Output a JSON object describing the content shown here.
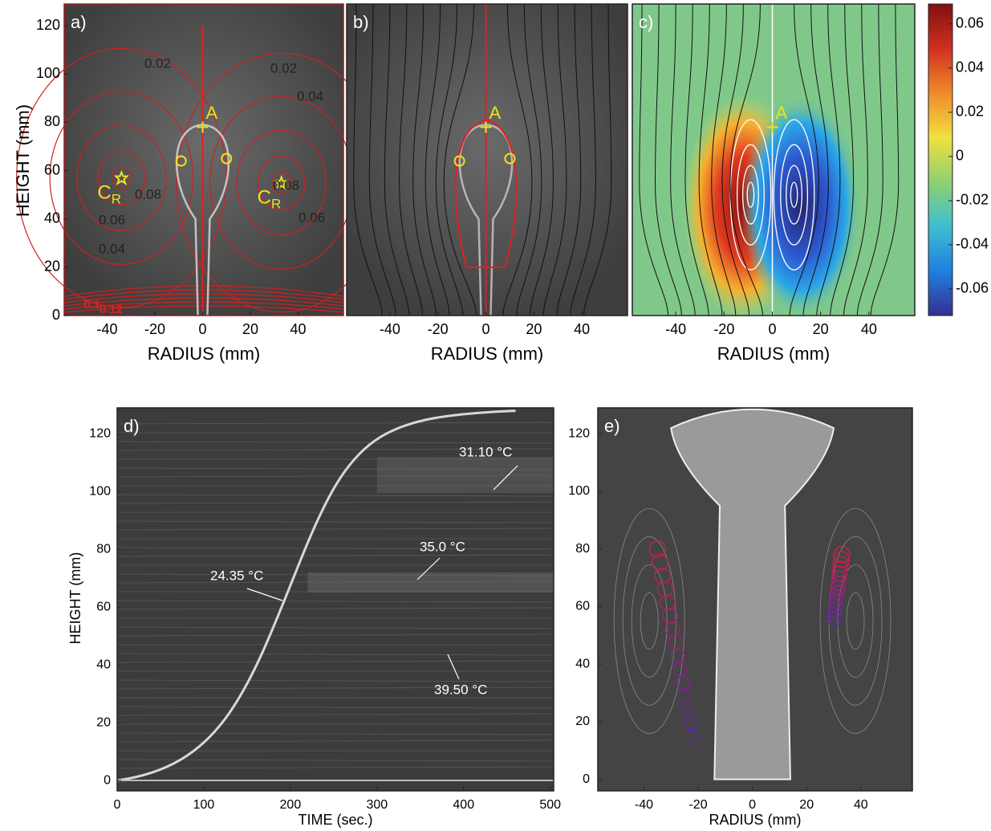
{
  "chart_data": [
    {
      "type": "image",
      "panel_label": "a)",
      "xlabel": "RADIUS (mm)",
      "ylabel": "HEIGHT (mm)",
      "xlim": [
        -58,
        59
      ],
      "ylim": [
        0,
        129
      ],
      "xticks": [
        -40,
        -20,
        0,
        20,
        40
      ],
      "yticks": [
        0,
        20,
        40,
        60,
        80,
        100,
        120
      ],
      "points": [
        {
          "name": "A",
          "x": 0,
          "y": 78
        },
        {
          "name": "C",
          "sub": "R",
          "x": -34,
          "y": 57
        },
        {
          "name": "C",
          "sub": "R",
          "x": 33,
          "y": 55
        }
      ],
      "annotations": [
        "0.02",
        "0.02",
        "0.04",
        "0.08",
        "0.06",
        "0.04",
        "0.08",
        "0.06",
        "0.1",
        "0.12"
      ]
    },
    {
      "type": "image",
      "panel_label": "b)",
      "xlabel": "RADIUS (mm)",
      "xlim": [
        -58,
        59
      ],
      "ylim": [
        0,
        129
      ],
      "xticks": [
        -40,
        -20,
        0,
        20,
        40
      ],
      "points": [
        {
          "name": "A",
          "x": 0,
          "y": 78
        }
      ]
    },
    {
      "type": "image",
      "panel_label": "c)",
      "xlabel": "RADIUS (mm)",
      "xlim": [
        -58,
        59
      ],
      "ylim": [
        0,
        129
      ],
      "xticks": [
        -40,
        -20,
        0,
        20,
        40
      ],
      "points": [
        {
          "name": "A",
          "x": 0,
          "y": 78
        }
      ],
      "colorbar": {
        "clim": [
          -0.072,
          0.069
        ],
        "ticks": [
          0.06,
          0.04,
          0.02,
          0,
          -0.02,
          -0.04,
          -0.06
        ],
        "colormap": [
          "#35308f",
          "#1f7fe0",
          "#3dbfd0",
          "#8fd070",
          "#f0e040",
          "#f08a2a",
          "#d03020",
          "#801010"
        ]
      }
    },
    {
      "type": "image",
      "panel_label": "d)",
      "xlabel": "TIME (sec.)",
      "ylabel": "HEIGHT (mm)",
      "xlim": [
        0,
        504
      ],
      "ylim": [
        -3.6,
        129
      ],
      "xticks": [
        0,
        100,
        200,
        300,
        400,
        500
      ],
      "yticks": [
        0,
        20,
        40,
        60,
        80,
        100,
        120
      ],
      "annotations": [
        "24.35 °C",
        "35.0 °C",
        "31.10 °C",
        "39.50 °C"
      ]
    },
    {
      "type": "image",
      "panel_label": "e)",
      "xlabel": "RADIUS (mm)",
      "xlim": [
        -57,
        59
      ],
      "ylim": [
        -4,
        129
      ],
      "xticks": [
        -40,
        -20,
        0,
        20,
        40
      ],
      "yticks": [
        0,
        20,
        40,
        60,
        80,
        100,
        120
      ]
    }
  ]
}
